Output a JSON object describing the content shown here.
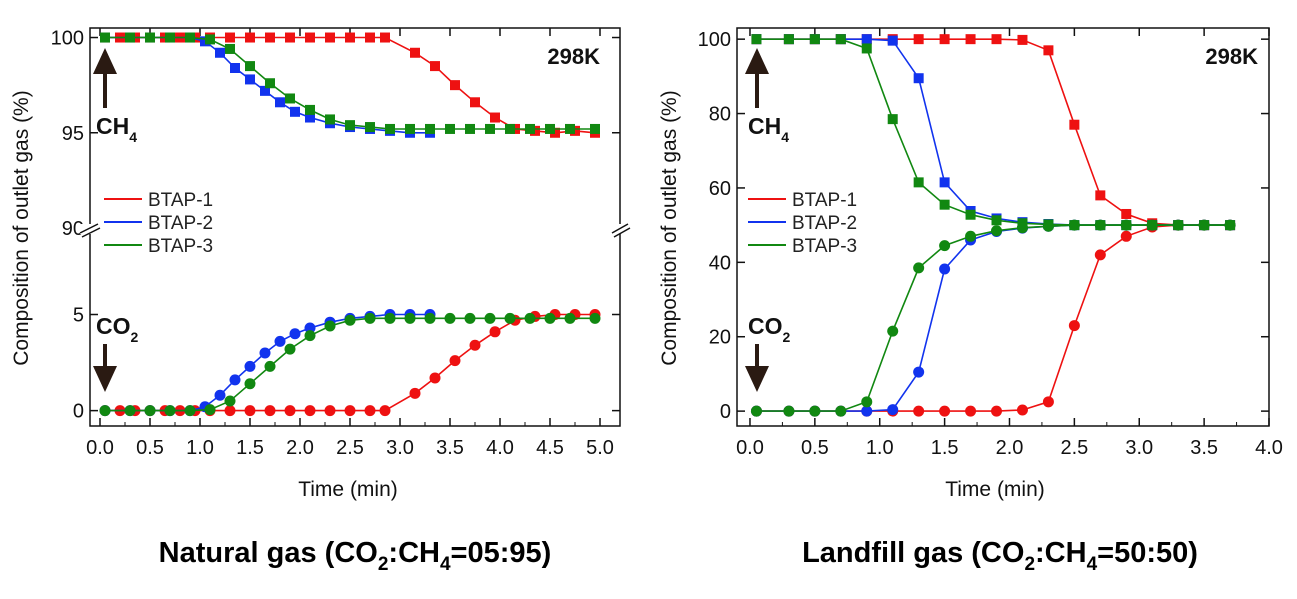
{
  "chart_data": [
    {
      "type": "line",
      "temperature_label": "298K",
      "xlabel": "Time (min)",
      "ylabel": "Composition of outlet gas (%)",
      "caption": {
        "prefix": "Natural gas (CO",
        "sub1": "2",
        "mid": ":CH",
        "sub2": "4",
        "suffix": "=05:95)"
      },
      "xlim": [
        -0.1,
        5.2
      ],
      "xticks": [
        "0.0",
        "0.5",
        "1.0",
        "1.5",
        "2.0",
        "2.5",
        "3.0",
        "3.5",
        "4.0",
        "4.5",
        "5.0"
      ],
      "y_broken": true,
      "ylim_upper": [
        90,
        100.5
      ],
      "ylim_lower": [
        -0.8,
        9.5
      ],
      "yticks_upper": [
        "90",
        "95",
        "100"
      ],
      "yticks_lower": [
        "0",
        "5"
      ],
      "legend": {
        "position": "left",
        "entries": [
          "BTAP-1",
          "BTAP-2",
          "BTAP-3"
        ]
      },
      "annotations": {
        "ch4": {
          "main": "CH",
          "sub": "4"
        },
        "co2": {
          "main": "CO",
          "sub": "2"
        }
      },
      "series": [
        {
          "name": "BTAP-1",
          "color": "#ee1111",
          "gas": "CH4",
          "marker": "square",
          "x": [
            0.05,
            0.2,
            0.35,
            0.5,
            0.65,
            0.8,
            0.95,
            1.1,
            1.3,
            1.5,
            1.7,
            1.9,
            2.1,
            2.3,
            2.5,
            2.7,
            2.85,
            3.15,
            3.35,
            3.55,
            3.75,
            3.95,
            4.15,
            4.35,
            4.55,
            4.75,
            4.95
          ],
          "y": [
            100,
            100,
            100,
            100,
            100,
            100,
            100,
            100,
            100,
            100,
            100,
            100,
            100,
            100,
            100,
            100,
            100,
            99.2,
            98.5,
            97.5,
            96.6,
            95.8,
            95.2,
            95.1,
            95.0,
            95.1,
            95.0
          ]
        },
        {
          "name": "BTAP-1",
          "color": "#ee1111",
          "gas": "CO2",
          "marker": "circle",
          "x": [
            0.05,
            0.2,
            0.35,
            0.5,
            0.65,
            0.8,
            0.95,
            1.1,
            1.3,
            1.5,
            1.7,
            1.9,
            2.1,
            2.3,
            2.5,
            2.7,
            2.85,
            3.15,
            3.35,
            3.55,
            3.75,
            3.95,
            4.15,
            4.35,
            4.55,
            4.75,
            4.95
          ],
          "y": [
            0,
            0,
            0,
            0,
            0,
            0,
            0,
            0,
            0,
            0,
            0,
            0,
            0,
            0,
            0,
            0,
            0,
            0.9,
            1.7,
            2.6,
            3.4,
            4.1,
            4.7,
            4.9,
            5.0,
            5.0,
            5.0
          ]
        },
        {
          "name": "BTAP-2",
          "color": "#1133ee",
          "gas": "CH4",
          "marker": "square",
          "x": [
            0.05,
            0.3,
            0.5,
            0.7,
            0.9,
            1.05,
            1.2,
            1.35,
            1.5,
            1.65,
            1.8,
            1.95,
            2.1,
            2.3,
            2.5,
            2.7,
            2.9,
            3.1,
            3.3
          ],
          "y": [
            100,
            100,
            100,
            100,
            100,
            99.8,
            99.2,
            98.4,
            97.8,
            97.2,
            96.6,
            96.1,
            95.8,
            95.5,
            95.3,
            95.2,
            95.1,
            95.0,
            95.0
          ]
        },
        {
          "name": "BTAP-2",
          "color": "#1133ee",
          "gas": "CO2",
          "marker": "circle",
          "x": [
            0.05,
            0.3,
            0.5,
            0.7,
            0.9,
            1.05,
            1.2,
            1.35,
            1.5,
            1.65,
            1.8,
            1.95,
            2.1,
            2.3,
            2.5,
            2.7,
            2.9,
            3.1,
            3.3
          ],
          "y": [
            0,
            0,
            0,
            0,
            0,
            0.2,
            0.8,
            1.6,
            2.3,
            3.0,
            3.6,
            4.0,
            4.3,
            4.6,
            4.8,
            4.9,
            5.0,
            5.0,
            5.0
          ]
        },
        {
          "name": "BTAP-3",
          "color": "#118811",
          "gas": "CH4",
          "marker": "square",
          "x": [
            0.05,
            0.3,
            0.5,
            0.7,
            0.9,
            1.1,
            1.3,
            1.5,
            1.7,
            1.9,
            2.1,
            2.3,
            2.5,
            2.7,
            2.9,
            3.1,
            3.3,
            3.5,
            3.7,
            3.9,
            4.1,
            4.3,
            4.5,
            4.7,
            4.95
          ],
          "y": [
            100,
            100,
            100,
            100,
            100,
            99.9,
            99.4,
            98.5,
            97.6,
            96.8,
            96.2,
            95.7,
            95.4,
            95.3,
            95.2,
            95.2,
            95.2,
            95.2,
            95.2,
            95.2,
            95.2,
            95.2,
            95.2,
            95.2,
            95.2
          ]
        },
        {
          "name": "BTAP-3",
          "color": "#118811",
          "gas": "CO2",
          "marker": "circle",
          "x": [
            0.05,
            0.3,
            0.5,
            0.7,
            0.9,
            1.1,
            1.3,
            1.5,
            1.7,
            1.9,
            2.1,
            2.3,
            2.5,
            2.7,
            2.9,
            3.1,
            3.3,
            3.5,
            3.7,
            3.9,
            4.1,
            4.3,
            4.5,
            4.7,
            4.95
          ],
          "y": [
            0,
            0,
            0,
            0,
            0,
            0.05,
            0.5,
            1.4,
            2.3,
            3.2,
            3.9,
            4.4,
            4.7,
            4.8,
            4.8,
            4.8,
            4.8,
            4.8,
            4.8,
            4.8,
            4.8,
            4.8,
            4.8,
            4.8,
            4.8
          ]
        }
      ]
    },
    {
      "type": "line",
      "temperature_label": "298K",
      "xlabel": "Time (min)",
      "ylabel": "Composition of outlet gas (%)",
      "caption": {
        "prefix": "Landfill gas (CO",
        "sub1": "2",
        "mid": ":CH",
        "sub2": "4",
        "suffix": "=50:50)"
      },
      "xlim": [
        -0.1,
        4.0
      ],
      "xticks": [
        "0.0",
        "0.5",
        "1.0",
        "1.5",
        "2.0",
        "2.5",
        "3.0",
        "3.5",
        "4.0"
      ],
      "ylim": [
        -4,
        103
      ],
      "yticks": [
        "0",
        "20",
        "40",
        "60",
        "80",
        "100"
      ],
      "legend": {
        "position": "left",
        "entries": [
          "BTAP-1",
          "BTAP-2",
          "BTAP-3"
        ]
      },
      "annotations": {
        "ch4": {
          "main": "CH",
          "sub": "4"
        },
        "co2": {
          "main": "CO",
          "sub": "2"
        }
      },
      "series": [
        {
          "name": "BTAP-1",
          "color": "#ee1111",
          "gas": "CH4",
          "marker": "square",
          "x": [
            0.05,
            0.3,
            0.5,
            0.7,
            0.9,
            1.1,
            1.3,
            1.5,
            1.7,
            1.9,
            2.1,
            2.3,
            2.5,
            2.7,
            2.9,
            3.1,
            3.3,
            3.5,
            3.7
          ],
          "y": [
            100,
            100,
            100,
            100,
            100,
            100,
            100,
            100,
            100,
            100,
            99.8,
            97,
            77,
            58,
            53,
            50.5,
            50,
            50,
            50
          ]
        },
        {
          "name": "BTAP-1",
          "color": "#ee1111",
          "gas": "CO2",
          "marker": "circle",
          "x": [
            0.05,
            0.3,
            0.5,
            0.7,
            0.9,
            1.1,
            1.3,
            1.5,
            1.7,
            1.9,
            2.1,
            2.3,
            2.5,
            2.7,
            2.9,
            3.1,
            3.3,
            3.5,
            3.7
          ],
          "y": [
            0,
            0,
            0,
            0,
            0,
            0,
            0,
            0,
            0,
            0,
            0.3,
            2.5,
            23,
            42,
            47,
            49.5,
            50,
            50,
            50
          ]
        },
        {
          "name": "BTAP-2",
          "color": "#1133ee",
          "gas": "CH4",
          "marker": "square",
          "x": [
            0.05,
            0.3,
            0.5,
            0.7,
            0.9,
            1.1,
            1.3,
            1.5,
            1.7,
            1.9,
            2.1,
            2.3,
            2.5,
            2.7,
            2.9,
            3.1,
            3.3,
            3.5,
            3.7
          ],
          "y": [
            100,
            100,
            100,
            100,
            100,
            99.6,
            89.5,
            61.5,
            53.8,
            51.8,
            50.8,
            50.3,
            50,
            50,
            50,
            50,
            50,
            50,
            50
          ]
        },
        {
          "name": "BTAP-2",
          "color": "#1133ee",
          "gas": "CO2",
          "marker": "circle",
          "x": [
            0.05,
            0.3,
            0.5,
            0.7,
            0.9,
            1.1,
            1.3,
            1.5,
            1.7,
            1.9,
            2.1,
            2.3,
            2.5,
            2.7,
            2.9,
            3.1,
            3.3,
            3.5,
            3.7
          ],
          "y": [
            0,
            0,
            0,
            0,
            0,
            0.4,
            10.5,
            38.2,
            46.0,
            48.3,
            49.2,
            49.7,
            50,
            50,
            50,
            50,
            50,
            50,
            50
          ]
        },
        {
          "name": "BTAP-3",
          "color": "#118811",
          "gas": "CH4",
          "marker": "square",
          "x": [
            0.05,
            0.3,
            0.5,
            0.7,
            0.9,
            1.1,
            1.3,
            1.5,
            1.7,
            1.9,
            2.1,
            2.3,
            2.5,
            2.7,
            2.9,
            3.1,
            3.3,
            3.5,
            3.7
          ],
          "y": [
            100,
            100,
            100,
            100,
            97.5,
            78.5,
            61.5,
            55.5,
            52.8,
            51.3,
            50.5,
            50.2,
            50,
            50,
            50,
            50,
            50,
            50,
            50
          ]
        },
        {
          "name": "BTAP-3",
          "color": "#118811",
          "gas": "CO2",
          "marker": "circle",
          "x": [
            0.05,
            0.3,
            0.5,
            0.7,
            0.9,
            1.1,
            1.3,
            1.5,
            1.7,
            1.9,
            2.1,
            2.3,
            2.5,
            2.7,
            2.9,
            3.1,
            3.3,
            3.5,
            3.7
          ],
          "y": [
            0,
            0,
            0,
            0,
            2.5,
            21.5,
            38.5,
            44.5,
            47.0,
            48.5,
            49.3,
            49.7,
            50,
            50,
            50,
            50,
            50,
            50,
            50
          ]
        }
      ]
    }
  ]
}
